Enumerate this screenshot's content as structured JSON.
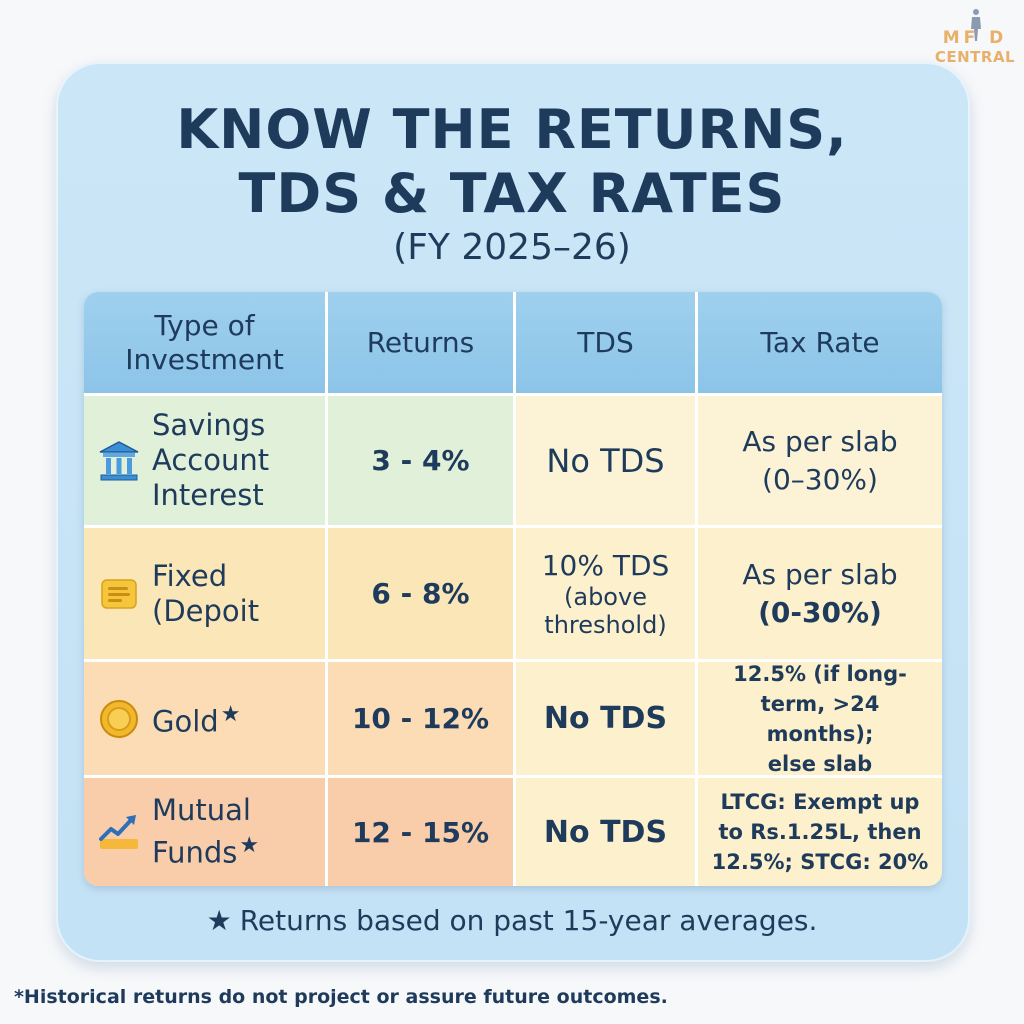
{
  "logo": {
    "line1": "MF  D",
    "line2": "CENTRAL"
  },
  "title_line1": "KNOW THE RETURNS,",
  "title_line2": "TDS & TAX RATES",
  "subtitle": "(FY 2025–26)",
  "table": {
    "headers": [
      "Type of Investment",
      "Returns",
      "TDS",
      "Tax Rate"
    ],
    "rows": [
      {
        "type_lines": [
          "Savings",
          "Account",
          "Interest"
        ],
        "icon": "bank-icon",
        "returns": "3 - 4%",
        "tds": "No TDS",
        "tax_lines": [
          "As per slab",
          "(0–30%)"
        ]
      },
      {
        "type_lines": [
          "Fixed",
          "(Depoit"
        ],
        "icon": "document-icon",
        "returns": "6 - 8%",
        "tds_lines": [
          "10% TDS",
          "(above",
          "threshold)"
        ],
        "tax_lines": [
          "As per slab",
          "(0-30%)"
        ]
      },
      {
        "type_lines": [
          "Gold"
        ],
        "starred": true,
        "icon": "gold-coin-icon",
        "returns": "10 - 12%",
        "tds": "No TDS",
        "tax_lines": [
          "12.5% (if long-",
          "term, >24 months);",
          "else slab"
        ]
      },
      {
        "type_lines": [
          "Mutual",
          "Funds"
        ],
        "starred": true,
        "icon": "growth-chart-icon",
        "returns": "12 - 15%",
        "tds": "No TDS",
        "tax_lines": [
          "LTCG: Exempt up",
          "to Rs.1.25L, then",
          "12.5%; STCG: 20%"
        ]
      }
    ]
  },
  "footnote_star": "★",
  "footnote": "Returns based on past 15-year averages.",
  "disclaimer": "*Historical returns do not project or assure future outcomes.",
  "colors": {
    "card": "#c8e4f6",
    "header": "#94c9ea",
    "text": "#1f3b5c",
    "logo": "#e8b06a"
  }
}
